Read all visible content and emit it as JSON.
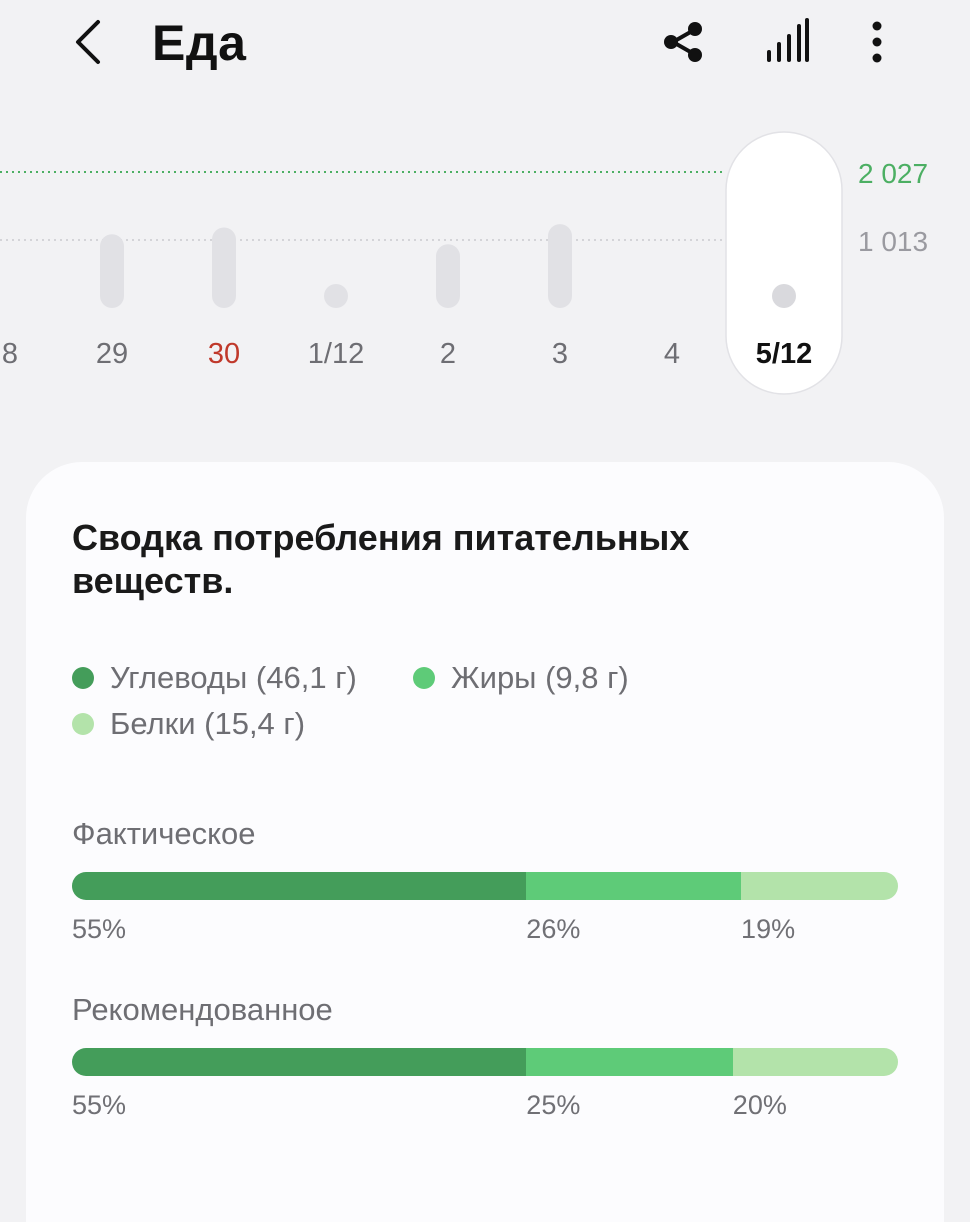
{
  "header": {
    "title": "Еда",
    "icons": {
      "back": "chevron-left-icon",
      "share": "share-icon",
      "stats": "signal-bars-icon",
      "more": "more-vertical-icon"
    }
  },
  "colors": {
    "carbs": "#449d5a",
    "fats": "#5ecb78",
    "protein": "#b3e3aa",
    "goal_line": "#4caf63",
    "weekend": "#c0392b"
  },
  "chart_data": {
    "type": "bar",
    "categories": [
      "8",
      "29",
      "30",
      "1/12",
      "2",
      "3",
      "4",
      "5/12"
    ],
    "values": [
      null,
      1100,
      1200,
      350,
      950,
      1250,
      0,
      100
    ],
    "reference_lines": [
      {
        "value": 2027,
        "label": "2 027",
        "style": "goal"
      },
      {
        "value": 1013,
        "label": "1 013",
        "style": "mid"
      }
    ],
    "selected": "5/12",
    "highlighted_label": "30"
  },
  "summary": {
    "title": "Сводка потребления питательных веществ.",
    "legend": [
      {
        "key": "carbs",
        "label": "Углеводы (46,1 г)"
      },
      {
        "key": "fats",
        "label": "Жиры (9,8 г)"
      },
      {
        "key": "protein",
        "label": "Белки (15,4 г)"
      }
    ],
    "actual": {
      "label": "Фактическое",
      "values": [
        55,
        26,
        19
      ],
      "labels": [
        "55%",
        "26%",
        "19%"
      ]
    },
    "recommended": {
      "label": "Рекомендованное",
      "values": [
        55,
        25,
        20
      ],
      "labels": [
        "55%",
        "25%",
        "20%"
      ]
    }
  }
}
